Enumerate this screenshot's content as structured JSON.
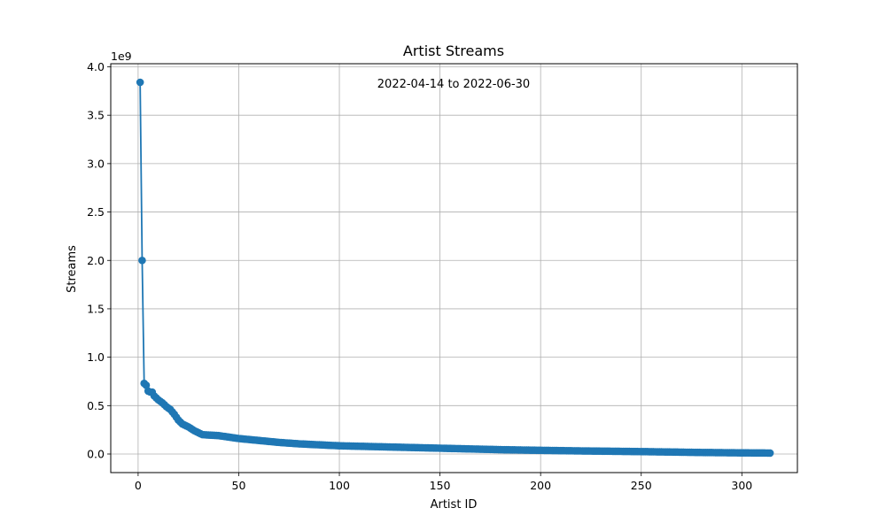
{
  "chart_data": {
    "type": "line",
    "title": "Artist Streams",
    "xlabel": "Artist ID",
    "ylabel": "Streams",
    "y_offset_label": "1e9",
    "annotation": "2022-04-14 to 2022-06-30",
    "xlim": [
      -13.6,
      327.6
    ],
    "ylim": [
      -192000000,
      4032000000
    ],
    "x_ticks": [
      0,
      50,
      100,
      150,
      200,
      250,
      300
    ],
    "y_ticks": [
      0.0,
      0.5,
      1.0,
      1.5,
      2.0,
      2.5,
      3.0,
      3.5,
      4.0
    ],
    "y_tick_labels": [
      "0.0",
      "0.5",
      "1.0",
      "1.5",
      "2.0",
      "2.5",
      "3.0",
      "3.5",
      "4.0"
    ],
    "y_tick_scale": 1000000000,
    "grid": true,
    "color": "#1f77b4",
    "marker": "circle",
    "anchors": [
      [
        1,
        3840000000
      ],
      [
        2,
        2000000000
      ],
      [
        3,
        730000000
      ],
      [
        4,
        710000000
      ],
      [
        5,
        650000000
      ],
      [
        6,
        640000000
      ],
      [
        7,
        640000000
      ],
      [
        8,
        600000000
      ],
      [
        10,
        560000000
      ],
      [
        12,
        530000000
      ],
      [
        14,
        490000000
      ],
      [
        16,
        460000000
      ],
      [
        18,
        410000000
      ],
      [
        20,
        350000000
      ],
      [
        22,
        310000000
      ],
      [
        25,
        280000000
      ],
      [
        28,
        240000000
      ],
      [
        32,
        200000000
      ],
      [
        40,
        190000000
      ],
      [
        50,
        160000000
      ],
      [
        60,
        140000000
      ],
      [
        70,
        120000000
      ],
      [
        80,
        105000000
      ],
      [
        90,
        95000000
      ],
      [
        100,
        85000000
      ],
      [
        120,
        75000000
      ],
      [
        140,
        65000000
      ],
      [
        160,
        55000000
      ],
      [
        180,
        45000000
      ],
      [
        200,
        38000000
      ],
      [
        220,
        32000000
      ],
      [
        250,
        25000000
      ],
      [
        280,
        16000000
      ],
      [
        300,
        12000000
      ],
      [
        314,
        10000000
      ]
    ],
    "n_points": 314
  }
}
